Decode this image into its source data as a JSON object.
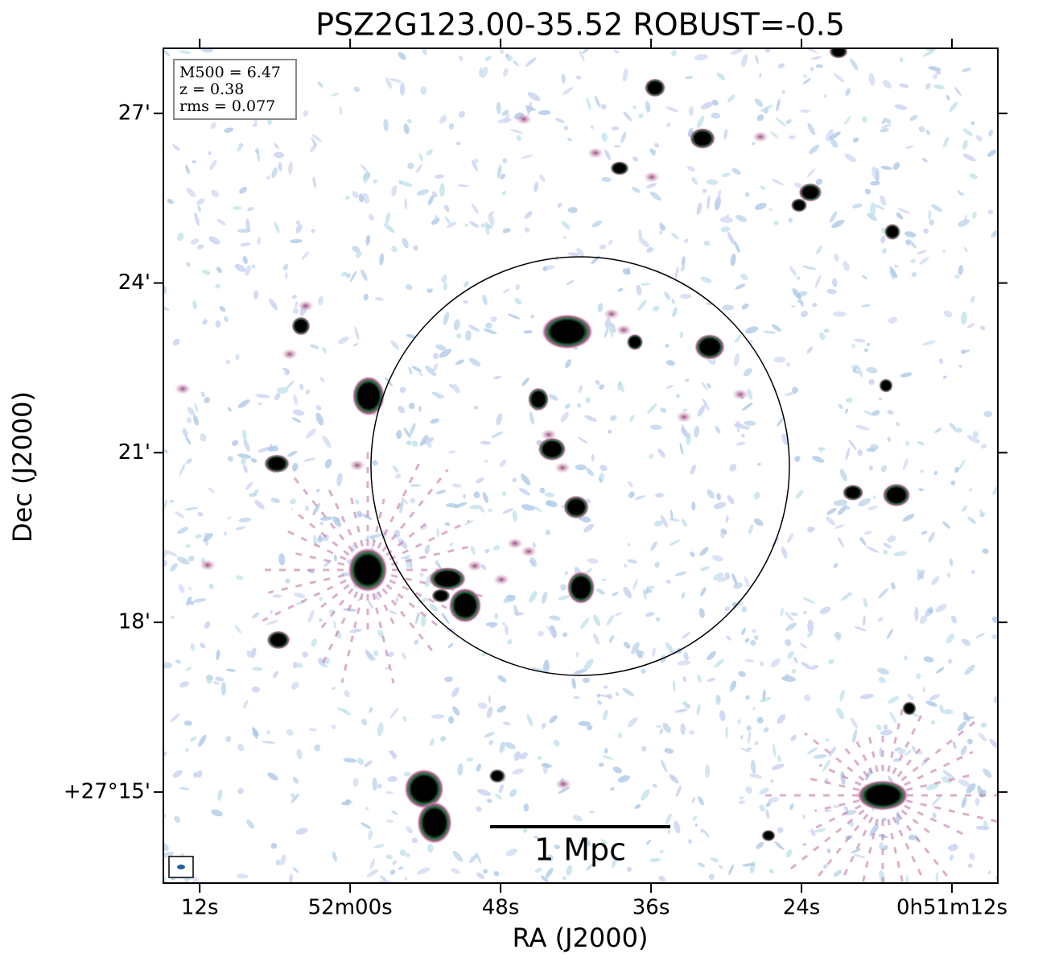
{
  "chart_data": {
    "type": "image",
    "title": "PSZ2G123.00-35.52 ROBUST=-0.5",
    "xlabel": "RA (J2000)",
    "ylabel": "Dec (J2000)",
    "annotations": [
      "M500 = 6.47",
      "z = 0.38",
      "rms = 0.077"
    ],
    "scale_bar": "1 Mpc",
    "xlim": [
      74.9,
      8.34
    ],
    "xticks": [
      {
        "value": 72,
        "label": "12s"
      },
      {
        "value": 60,
        "label": "52m00s"
      },
      {
        "value": 48,
        "label": "48s"
      },
      {
        "value": 36,
        "label": "36s"
      },
      {
        "value": 24,
        "label": "24s"
      },
      {
        "value": 12,
        "label": "0h51m12s"
      }
    ],
    "ylim": [
      13.39,
      28.15
    ],
    "yticks": [
      {
        "value": 15,
        "label": "+27°15'"
      },
      {
        "value": 18,
        "label": "18'"
      },
      {
        "value": 21,
        "label": "21'"
      },
      {
        "value": 24,
        "label": "24'"
      },
      {
        "value": 27,
        "label": "27'"
      }
    ]
  }
}
